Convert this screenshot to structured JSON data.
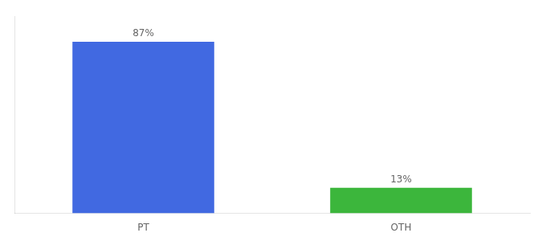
{
  "chart_data": {
    "type": "bar",
    "categories": [
      "PT",
      "OTH"
    ],
    "values": [
      87,
      13
    ],
    "value_labels": [
      "87%",
      "13%"
    ],
    "colors": [
      "#4169e1",
      "#3cb63c"
    ],
    "ylim": [
      0,
      100
    ],
    "yticks": [],
    "grid": false,
    "data_labels": true,
    "tick_labels": "x"
  }
}
